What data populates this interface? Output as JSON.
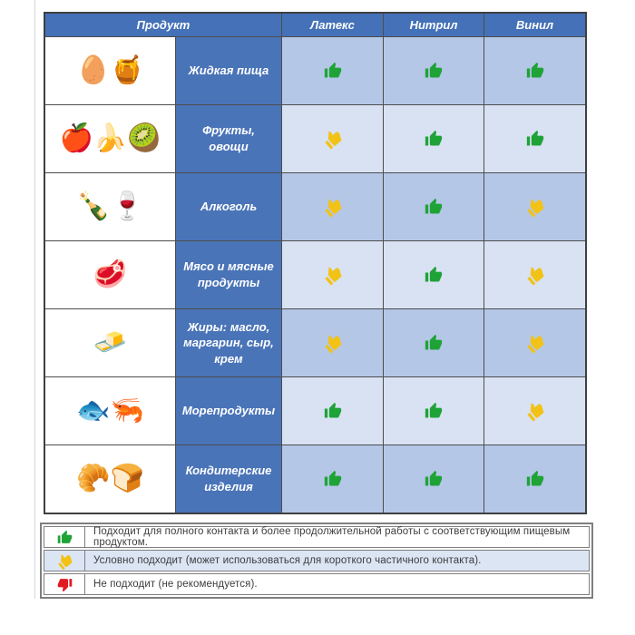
{
  "table": {
    "headers": {
      "product": "Продукт",
      "latex": "Латекс",
      "nitrile": "Нитрил",
      "vinyl": "Винил"
    },
    "rows": [
      {
        "image_icon": "eggs-and-honey",
        "image_glyph": "🥚🍯",
        "name": "Жидкая пища",
        "ratings": [
          "ok",
          "ok",
          "ok"
        ]
      },
      {
        "image_icon": "fruits-vegetables",
        "image_glyph": "🍎🍌🥝",
        "name": "Фрукты, овощи",
        "ratings": [
          "cond",
          "ok",
          "ok"
        ]
      },
      {
        "image_icon": "alcohol-bottles",
        "image_glyph": "🍾🍷",
        "name": "Алкоголь",
        "ratings": [
          "cond",
          "ok",
          "cond"
        ]
      },
      {
        "image_icon": "raw-meat",
        "image_glyph": "🥩",
        "name": "Мясо и мясные продукты",
        "ratings": [
          "cond",
          "ok",
          "cond"
        ]
      },
      {
        "image_icon": "butter-curl",
        "image_glyph": "🧈",
        "name": "Жиры: масло, маргарин, сыр, крем",
        "ratings": [
          "cond",
          "ok",
          "cond"
        ]
      },
      {
        "image_icon": "seafood-fish",
        "image_glyph": "🐟🦐",
        "name": "Морепродукты",
        "ratings": [
          "ok",
          "ok",
          "cond"
        ]
      },
      {
        "image_icon": "pastries-bread",
        "image_glyph": "🥐🍞",
        "name": "Кондитерские изделия",
        "ratings": [
          "ok",
          "ok",
          "ok"
        ]
      }
    ]
  },
  "legend": [
    {
      "icon": "thumb-up-green",
      "rating": "ok",
      "text": "Подходит для полного контакта и более продолжительной работы с соответствующим пищевым продуктом."
    },
    {
      "icon": "thumb-tilted-yellow",
      "rating": "cond",
      "text": "Условно подходит (может использоваться для короткого частичного контакта)."
    },
    {
      "icon": "thumb-down-red",
      "rating": "no",
      "text": "Не подходит (не рекомендуется)."
    }
  ],
  "colors": {
    "header_blue": "#4471b8",
    "name_cell_blue": "#4a74b8",
    "row_medium_blue": "#b4c7e7",
    "row_light_blue": "#d9e2f3",
    "thumb_green": "#1fa337",
    "thumb_yellow": "#f2c216",
    "thumb_red": "#e11b22",
    "border_dark": "#3f3f3f",
    "legend_border": "#7f7f7f"
  },
  "chart_data": {
    "type": "table",
    "title": "",
    "columns": [
      "Продукт",
      "Латекс",
      "Нитрил",
      "Винил"
    ],
    "rows": [
      [
        "Жидкая пища",
        "ok",
        "ok",
        "ok"
      ],
      [
        "Фрукты, овощи",
        "conditional",
        "ok",
        "ok"
      ],
      [
        "Алкоголь",
        "conditional",
        "ok",
        "conditional"
      ],
      [
        "Мясо и мясные продукты",
        "conditional",
        "ok",
        "conditional"
      ],
      [
        "Жиры: масло, маргарин, сыр, крем",
        "conditional",
        "ok",
        "conditional"
      ],
      [
        "Морепродукты",
        "ok",
        "ok",
        "conditional"
      ],
      [
        "Кондитерские изделия",
        "ok",
        "ok",
        "ok"
      ]
    ],
    "legend_meaning": {
      "ok": "Подходит для полного контакта и более продолжительной работы с соответствующим пищевым продуктом.",
      "conditional": "Условно подходит (может использоваться для короткого частичного контакта).",
      "no": "Не подходит (не рекомендуется)."
    }
  }
}
